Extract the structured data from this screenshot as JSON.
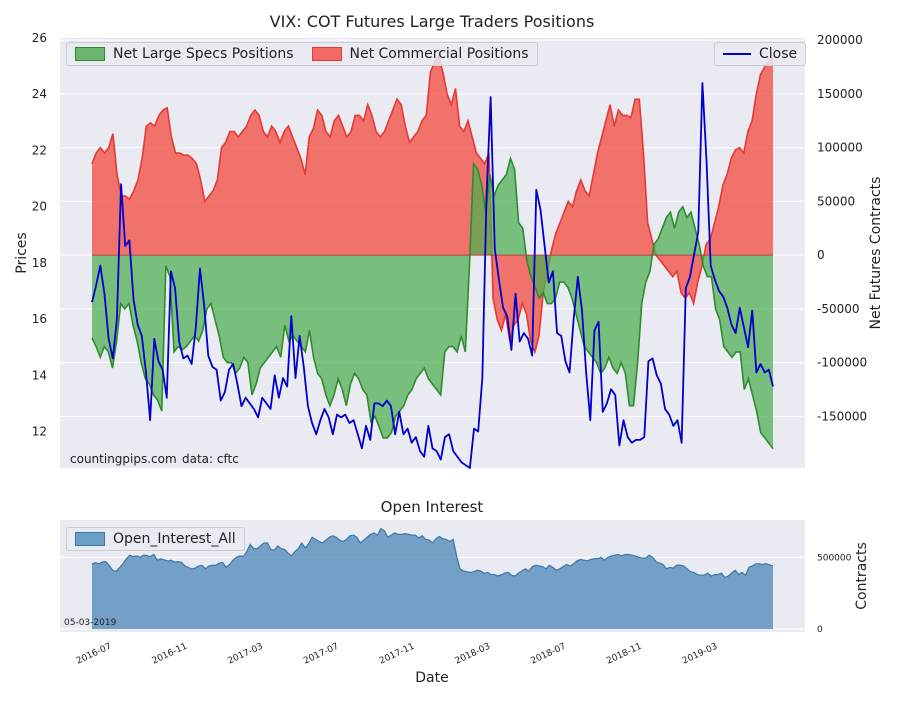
{
  "title_main": "VIX: COT Futures Large Traders Positions",
  "title_oi": "Open Interest",
  "watermark_left": "countingpips.com",
  "watermark_right": "data: cftc",
  "oi_date_label": "05-03-2019",
  "colors": {
    "bg_plot": "#eaeaf2",
    "specs_fill": "#4caf50",
    "specs_line": "#2e8b2e",
    "comm_fill": "#f44336",
    "comm_line": "#e53935",
    "close_line": "#0000cc",
    "oi_fill": "#4682b4",
    "oi_line": "#3a78a8"
  },
  "chart_data": [
    {
      "type": "area",
      "ylabel": "Prices",
      "y2label": "Net Futures Contracts",
      "ylim": [
        10.7,
        26.0
      ],
      "y2lim": [
        -198000,
        202000
      ],
      "y_ticks": [
        12,
        14,
        16,
        18,
        20,
        22,
        24,
        26
      ],
      "y2_ticks": [
        -150000,
        -100000,
        -50000,
        0,
        50000,
        100000,
        150000,
        200000
      ],
      "y2_tick_labels": [
        "-150000",
        "-100000",
        "-50000",
        "0",
        "50000",
        "100000",
        "150000",
        "200000"
      ],
      "series": [
        {
          "name": "Net Large Specs Positions",
          "axis": "right",
          "values": [
            -77000,
            -85000,
            -95000,
            -85000,
            -90000,
            -105000,
            -80000,
            -45000,
            -50000,
            -45000,
            -65000,
            -80000,
            -100000,
            -115000,
            -120000,
            -130000,
            -135000,
            -145000,
            -10000,
            -20000,
            -90000,
            -85000,
            -88000,
            -85000,
            -80000,
            -75000,
            -80000,
            -70000,
            -50000,
            -45000,
            -60000,
            -75000,
            -95000,
            -100000,
            -100000,
            -110000,
            -105000,
            -95000,
            -100000,
            -130000,
            -120000,
            -105000,
            -100000,
            -95000,
            -90000,
            -85000,
            -95000,
            -65000,
            -80000,
            -75000,
            -80000,
            -85000,
            -90000,
            -70000,
            -95000,
            -110000,
            -115000,
            -130000,
            -140000,
            -130000,
            -115000,
            -125000,
            -140000,
            -120000,
            -110000,
            -115000,
            -125000,
            -130000,
            -155000,
            -150000,
            -160000,
            -170000,
            -170000,
            -165000,
            -150000,
            -145000,
            -140000,
            -130000,
            -125000,
            -115000,
            -110000,
            -105000,
            -115000,
            -120000,
            -125000,
            -130000,
            -90000,
            -85000,
            -85000,
            -90000,
            -75000,
            -90000,
            -10000,
            85000,
            80000,
            65000,
            40000,
            75000,
            55000,
            65000,
            70000,
            75000,
            90000,
            80000,
            30000,
            25000,
            -5000,
            -20000,
            -30000,
            -40000,
            -35000,
            -45000,
            -45000,
            -40000,
            -25000,
            -25000,
            -30000,
            -40000,
            -55000,
            -70000,
            -85000,
            -90000,
            -95000,
            -100000,
            -110000,
            -105000,
            -95000,
            -105000,
            -110000,
            -100000,
            -110000,
            -140000,
            -140000,
            -100000,
            -45000,
            -25000,
            -15000,
            10000,
            15000,
            25000,
            35000,
            40000,
            25000,
            40000,
            45000,
            35000,
            40000,
            25000,
            10000,
            -10000,
            -20000,
            -20000,
            -50000,
            -60000,
            -85000,
            -90000,
            -95000,
            -90000,
            -90000,
            -125000,
            -115000,
            -130000,
            -145000,
            -165000,
            -170000,
            -175000,
            -180000
          ]
        },
        {
          "name": "Net Commercial Positions",
          "axis": "right",
          "values": [
            85000,
            95000,
            100000,
            95000,
            100000,
            113000,
            75000,
            55000,
            55000,
            52000,
            60000,
            70000,
            90000,
            120000,
            123000,
            120000,
            130000,
            135000,
            137000,
            110000,
            95000,
            95000,
            93000,
            93000,
            90000,
            85000,
            70000,
            50000,
            55000,
            60000,
            70000,
            100000,
            105000,
            115000,
            115000,
            110000,
            115000,
            120000,
            130000,
            135000,
            130000,
            115000,
            110000,
            120000,
            115000,
            105000,
            115000,
            120000,
            110000,
            100000,
            90000,
            75000,
            110000,
            118000,
            135000,
            130000,
            115000,
            110000,
            125000,
            130000,
            120000,
            110000,
            115000,
            130000,
            130000,
            125000,
            140000,
            130000,
            115000,
            110000,
            115000,
            125000,
            135000,
            145000,
            140000,
            120000,
            105000,
            110000,
            115000,
            125000,
            130000,
            170000,
            180000,
            185000,
            170000,
            150000,
            140000,
            155000,
            120000,
            115000,
            125000,
            110000,
            95000,
            90000,
            85000,
            95000,
            -40000,
            -60000,
            -70000,
            -55000,
            -80000,
            -65000,
            -60000,
            -45000,
            -55000,
            -80000,
            -90000,
            -75000,
            -35000,
            -15000,
            5000,
            20000,
            30000,
            40000,
            50000,
            45000,
            60000,
            70000,
            60000,
            55000,
            75000,
            95000,
            110000,
            125000,
            140000,
            120000,
            135000,
            130000,
            130000,
            128000,
            145000,
            145000,
            95000,
            30000,
            15000,
            0,
            -5000,
            -10000,
            -15000,
            -20000,
            -15000,
            -35000,
            -40000,
            -35000,
            -45000,
            -25000,
            -10000,
            10000,
            15000,
            30000,
            45000,
            65000,
            75000,
            90000,
            98000,
            100000,
            95000,
            115000,
            125000,
            150000,
            168000,
            175000,
            180000,
            185000
          ]
        },
        {
          "name": "Close",
          "axis": "left",
          "values": [
            16.6,
            17.2,
            17.9,
            16.9,
            15.3,
            14.6,
            16.0,
            20.8,
            18.6,
            18.8,
            16.7,
            15.8,
            15.4,
            14.1,
            12.4,
            15.3,
            14.5,
            14.2,
            13.2,
            17.7,
            17.1,
            15.2,
            14.6,
            14.7,
            14.4,
            15.7,
            17.8,
            16.5,
            14.7,
            14.3,
            14.2,
            13.1,
            13.4,
            14.2,
            14.4,
            13.7,
            12.9,
            13.2,
            13.0,
            12.8,
            12.5,
            13.2,
            13.0,
            12.8,
            14.0,
            13.2,
            13.9,
            13.6,
            16.1,
            13.9,
            15.4,
            14.3,
            12.9,
            12.3,
            11.9,
            12.4,
            12.8,
            12.5,
            11.9,
            12.6,
            12.5,
            12.6,
            12.3,
            12.4,
            11.9,
            11.4,
            12.2,
            11.7,
            13.0,
            13.0,
            12.9,
            13.1,
            12.9,
            11.9,
            12.7,
            11.9,
            12.1,
            11.6,
            11.8,
            11.3,
            11.1,
            12.2,
            11.4,
            11.3,
            11.0,
            11.8,
            11.9,
            11.3,
            11.1,
            10.9,
            10.8,
            10.7,
            12.1,
            12.0,
            13.9,
            20.3,
            23.9,
            18.5,
            17.4,
            16.4,
            16.1,
            14.9,
            16.9,
            15.2,
            15.5,
            15.3,
            14.7,
            20.6,
            19.9,
            18.6,
            17.3,
            17.7,
            15.5,
            15.4,
            14.5,
            14.1,
            16.0,
            17.5,
            16.3,
            14.1,
            12.4,
            15.6,
            15.9,
            12.7,
            13.0,
            13.5,
            13.3,
            11.5,
            12.4,
            11.8,
            11.6,
            11.7,
            11.7,
            11.8,
            14.5,
            14.6,
            14.0,
            13.7,
            12.8,
            12.6,
            12.2,
            12.4,
            11.6,
            17.1,
            17.5,
            18.3,
            19.1,
            24.4,
            21.6,
            17.9,
            17.4,
            17.0,
            16.8,
            16.4,
            15.8,
            15.5,
            16.4,
            15.7,
            15.0,
            16.3,
            14.1,
            14.4,
            14.1,
            14.2,
            13.6
          ]
        }
      ]
    },
    {
      "type": "area",
      "ylabel": "Contracts",
      "xlabel": "Date",
      "ylim": [
        -20000,
        760000
      ],
      "y_ticks": [
        0,
        500000
      ],
      "y_tick_labels": [
        "0",
        "500000"
      ],
      "x_tick_labels": [
        "2016-07",
        "2016-11",
        "2017-03",
        "2017-07",
        "2017-11",
        "2018-03",
        "2018-07",
        "2018-11",
        "2019-03"
      ],
      "series": [
        {
          "name": "Open_Interest_All",
          "values": [
            455000,
            462000,
            455000,
            468000,
            470000,
            443000,
            410000,
            402000,
            428000,
            455000,
            490000,
            515000,
            505000,
            510000,
            500000,
            515000,
            512000,
            505000,
            520000,
            480000,
            490000,
            482000,
            475000,
            480000,
            467000,
            470000,
            465000,
            440000,
            430000,
            418000,
            425000,
            440000,
            445000,
            420000,
            440000,
            445000,
            445000,
            460000,
            465000,
            430000,
            450000,
            480000,
            500000,
            510000,
            505000,
            540000,
            590000,
            560000,
            560000,
            580000,
            600000,
            600000,
            555000,
            550000,
            580000,
            560000,
            555000,
            530000,
            510000,
            540000,
            560000,
            600000,
            565000,
            595000,
            640000,
            625000,
            610000,
            600000,
            620000,
            640000,
            650000,
            640000,
            620000,
            610000,
            625000,
            650000,
            655000,
            640000,
            600000,
            620000,
            640000,
            660000,
            670000,
            655000,
            700000,
            685000,
            640000,
            655000,
            670000,
            660000,
            660000,
            665000,
            660000,
            655000,
            655000,
            635000,
            650000,
            625000,
            620000,
            600000,
            630000,
            645000,
            630000,
            625000,
            610000,
            625000,
            510000,
            420000,
            405000,
            400000,
            395000,
            400000,
            410000,
            405000,
            388000,
            395000,
            380000,
            380000,
            370000,
            378000,
            390000,
            395000,
            375000,
            370000,
            390000,
            405000,
            420000,
            405000,
            435000,
            445000,
            440000,
            435000,
            420000,
            445000,
            430000,
            410000,
            420000,
            435000,
            450000,
            440000,
            455000,
            475000,
            485000,
            480000,
            475000,
            485000,
            490000,
            490000,
            500000,
            480000,
            500000,
            510000,
            515000,
            520000,
            510000,
            520000,
            520000,
            515000,
            510000,
            500000,
            495000,
            495000,
            515000,
            500000,
            470000,
            460000,
            450000,
            420000,
            430000,
            425000,
            445000,
            445000,
            440000,
            420000,
            400000,
            395000,
            380000,
            375000,
            375000,
            390000,
            370000,
            380000,
            380000,
            390000,
            360000,
            370000,
            390000,
            410000,
            380000,
            395000,
            375000,
            430000,
            440000,
            455000,
            455000,
            450000,
            455000,
            448000,
            440000
          ]
        }
      ]
    }
  ],
  "legend_main_left": [
    "Net Large Specs Positions",
    "Net Commercial Positions"
  ],
  "legend_main_right": "Close",
  "legend_oi": "Open_Interest_All"
}
